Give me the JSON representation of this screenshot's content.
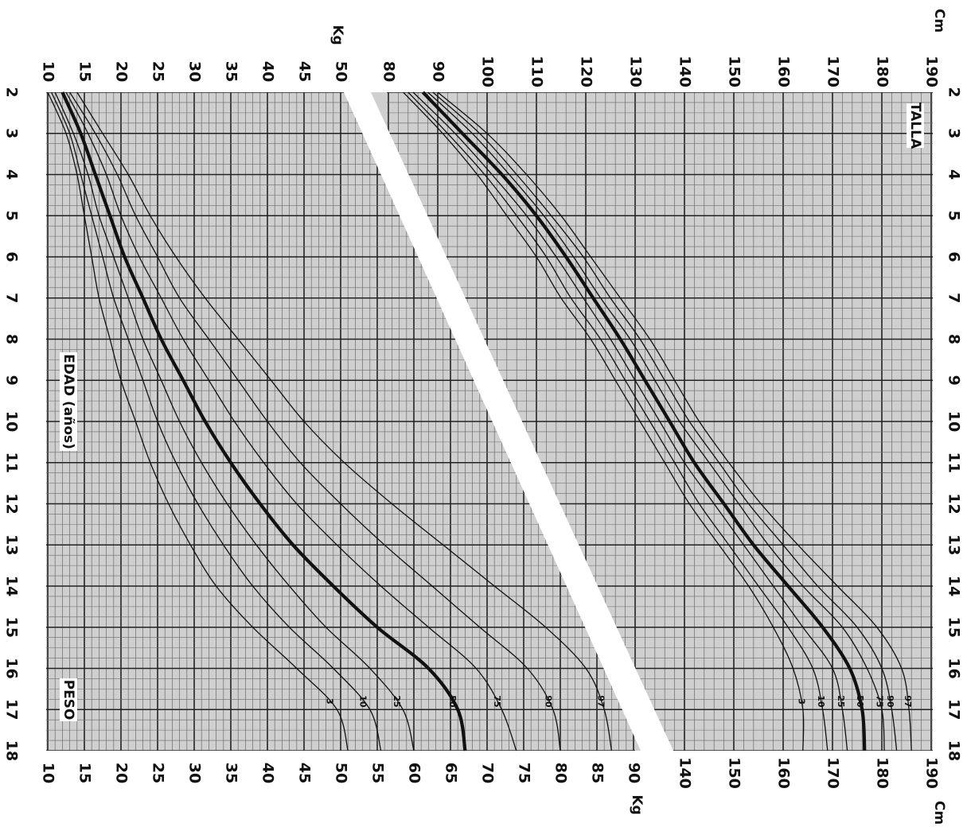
{
  "chart_data": [
    {
      "type": "line",
      "title": "TALLA",
      "xlabel": "",
      "ylabel": "Cm",
      "x": [
        2,
        3,
        4,
        5,
        6,
        7,
        8,
        9,
        10,
        11,
        12,
        13,
        14,
        15,
        16,
        17,
        18
      ],
      "xlim": [
        2,
        18
      ],
      "ylim": [
        80,
        190
      ],
      "y_ticks_left": [
        80,
        90,
        100,
        110,
        120,
        130,
        140,
        150,
        160,
        170,
        180,
        190
      ],
      "y_ticks_right": [
        140,
        150,
        160,
        170,
        180,
        190
      ],
      "y_unit_left": "Cm",
      "y_unit_right": "Cm",
      "series": [
        {
          "name": "3",
          "bold": false,
          "values": [
            83,
            91,
            98,
            104,
            110,
            115,
            121,
            126,
            131,
            136,
            141,
            147,
            153,
            158,
            162,
            164,
            164
          ]
        },
        {
          "name": "10",
          "bold": false,
          "values": [
            84,
            92,
            99.5,
            106,
            112,
            117,
            123,
            128,
            133,
            138,
            143,
            149,
            155,
            161,
            166,
            168,
            169
          ]
        },
        {
          "name": "25",
          "bold": false,
          "values": [
            85,
            93.5,
            101,
            108,
            114,
            119.5,
            125,
            130,
            135,
            140,
            146,
            152,
            158,
            164,
            170,
            172,
            173
          ]
        },
        {
          "name": "50",
          "bold": true,
          "values": [
            87,
            95,
            103,
            110,
            116,
            121.5,
            127,
            132,
            137,
            142,
            148,
            154,
            161,
            168,
            173.5,
            176,
            176.5
          ]
        },
        {
          "name": "75",
          "bold": false,
          "values": [
            88,
            97,
            104.5,
            111.5,
            117.5,
            123,
            129,
            134,
            139,
            145,
            151,
            157,
            164,
            172,
            177,
            180,
            180.5
          ]
        },
        {
          "name": "90",
          "bold": false,
          "values": [
            89,
            98.5,
            106,
            113,
            119.5,
            125,
            131,
            136,
            141,
            147,
            153,
            160,
            167,
            175,
            180,
            182,
            183
          ]
        },
        {
          "name": "97",
          "bold": false,
          "values": [
            90,
            100,
            108,
            115,
            121,
            127,
            133,
            138,
            143,
            149,
            155.5,
            163,
            171,
            179,
            184,
            185.5,
            186
          ]
        }
      ]
    },
    {
      "type": "line",
      "title": "PESO",
      "xlabel": "EDAD (años)",
      "ylabel": "Kg",
      "x": [
        2,
        3,
        4,
        5,
        6,
        7,
        8,
        9,
        10,
        11,
        12,
        13,
        14,
        15,
        16,
        17,
        18
      ],
      "xlim": [
        2,
        18
      ],
      "ylim": [
        10,
        90
      ],
      "y_ticks_left": [
        10,
        15,
        20,
        25,
        30,
        35,
        40,
        45,
        50
      ],
      "y_ticks_right": [
        10,
        15,
        20,
        25,
        30,
        35,
        40,
        45,
        50,
        55,
        60,
        65,
        70,
        75,
        80,
        85,
        90
      ],
      "y_unit_left": "Kg",
      "y_unit_right": "Kg",
      "series": [
        {
          "name": "3",
          "bold": false,
          "values": [
            10,
            12.5,
            14,
            15,
            16,
            17,
            18.5,
            20,
            22,
            24,
            26.5,
            29.5,
            33,
            38,
            44,
            49.5,
            51
          ]
        },
        {
          "name": "10",
          "bold": false,
          "values": [
            10.5,
            13,
            14.5,
            16,
            17.5,
            19,
            21,
            23,
            25,
            27.5,
            30.5,
            34,
            38,
            43,
            49,
            54,
            55.5
          ]
        },
        {
          "name": "25",
          "bold": false,
          "values": [
            11,
            13.5,
            15.5,
            17,
            19,
            21,
            23,
            25.5,
            28,
            31,
            34.5,
            38.5,
            43,
            48,
            54,
            58.5,
            60
          ]
        },
        {
          "name": "50",
          "bold": true,
          "values": [
            12,
            14.5,
            16.5,
            18.5,
            20.5,
            23,
            25.5,
            28.5,
            31.5,
            35,
            39,
            43.5,
            49,
            55,
            62,
            66,
            67
          ]
        },
        {
          "name": "75",
          "bold": false,
          "values": [
            12.5,
            15.5,
            18,
            20,
            22.5,
            25.5,
            28.5,
            32,
            35.5,
            39.5,
            44,
            49.5,
            55.5,
            62,
            68.5,
            72,
            74
          ]
        },
        {
          "name": "90",
          "bold": false,
          "values": [
            13,
            16.5,
            19.5,
            22,
            25,
            28,
            32,
            36,
            40,
            44.5,
            50,
            56,
            62.5,
            69,
            75.5,
            79,
            80
          ]
        },
        {
          "name": "97",
          "bold": false,
          "values": [
            14,
            17.5,
            21,
            24,
            27.5,
            31.5,
            36,
            40.5,
            45,
            50.5,
            57,
            64,
            71,
            78,
            83.5,
            86,
            87
          ]
        }
      ]
    }
  ],
  "colors": {
    "background": "#ffffff",
    "grid_shade": "#cfcfcf",
    "grid_minor": "#6a6a6a",
    "grid_major": "#222222",
    "curve": "#111111"
  }
}
